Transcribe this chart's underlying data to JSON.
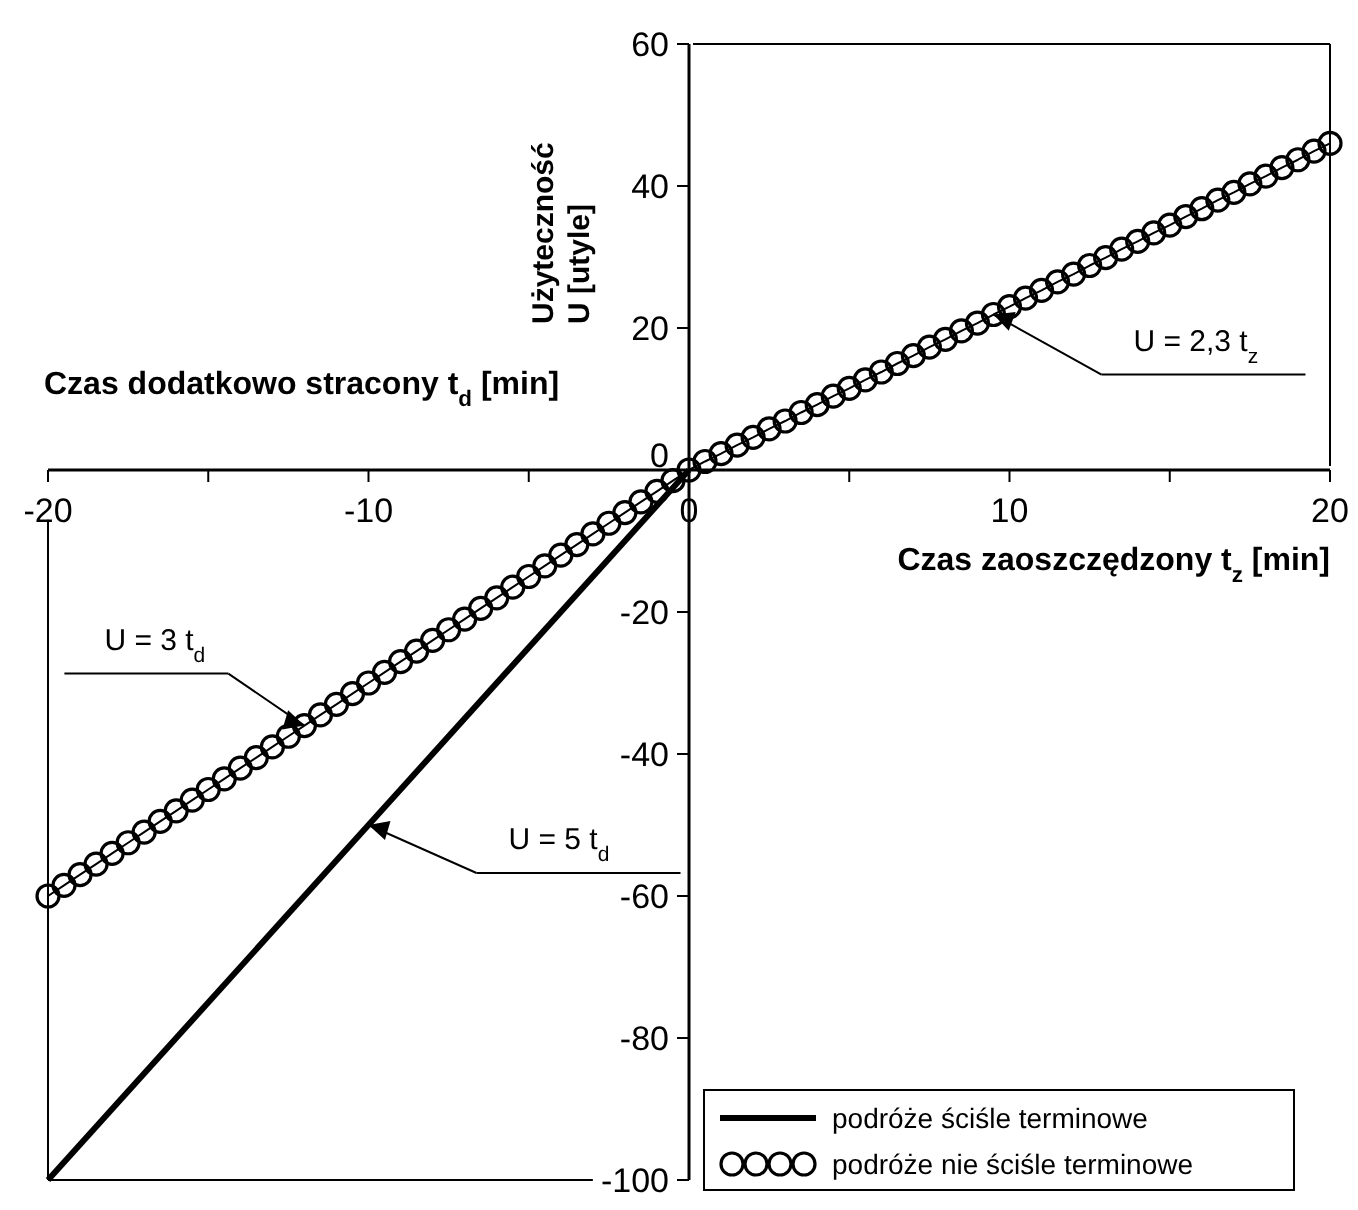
{
  "chart_data": {
    "type": "line",
    "xlabel": "Czas zaoszczędzony t$_{z}$ [min]",
    "ylabel": "Użyteczność U [utyle]",
    "annotations": [
      "Czas dodatkowo stracony t$_{d}$ [min]",
      {
        "text": "U = 2,3 t$_{z}$",
        "x": 9.5,
        "y": 21.9
      },
      {
        "text": "U = 3 t$_{d}$",
        "x": -12,
        "y": -36
      },
      {
        "text": "U = 5 t$_{d}$",
        "x": -10,
        "y": -50
      }
    ],
    "xlim": [
      -20,
      20
    ],
    "ylim": [
      -100,
      60
    ],
    "xticks": [
      -20,
      {
        "value": -15,
        "label": null
      },
      -10,
      {
        "value": -5,
        "label": null
      },
      0,
      {
        "value": 5,
        "label": null
      },
      10,
      {
        "value": 15,
        "label": null
      },
      20
    ],
    "yticks": [
      -100,
      -80,
      -60,
      -40,
      -20,
      0,
      20,
      40,
      60
    ],
    "grid": false,
    "legend": "bottom right",
    "series": [
      {
        "name": "podróże ściśle terminowe",
        "color": "#000000",
        "line_style": "solid",
        "x": [
          -20,
          0
        ],
        "values": [
          -100,
          0
        ]
      },
      {
        "name": "podróże nie ściśle terminowe",
        "color": "#000000",
        "marker": "circle",
        "x": [
          -20,
          -19.5,
          -19,
          -18.5,
          -18,
          -17.5,
          -17,
          -16.5,
          -16,
          -15.5,
          -15,
          -14.5,
          -14,
          -13.5,
          -13,
          -12.5,
          -12,
          -11.5,
          -11,
          -10.5,
          -10,
          -9.5,
          -9,
          -8.5,
          -8,
          -7.5,
          -7,
          -6.5,
          -6,
          -5.5,
          -5,
          -4.5,
          -4,
          -3.5,
          -3,
          -2.5,
          -2,
          -1.5,
          -1,
          -0.5,
          0,
          0.5,
          1,
          1.5,
          2,
          2.5,
          3,
          3.5,
          4,
          4.5,
          5,
          5.5,
          6,
          6.5,
          7,
          7.5,
          8,
          8.5,
          9,
          9.5,
          10,
          10.5,
          11,
          11.5,
          12,
          12.5,
          13,
          13.5,
          14,
          14.5,
          15,
          15.5,
          16,
          16.5,
          17,
          17.5,
          18,
          18.5,
          19,
          19.5,
          20
        ],
        "values": [
          -60,
          -58.5,
          -57,
          -55.5,
          -54,
          -52.5,
          -51,
          -49.5,
          -48,
          -46.5,
          -45,
          -43.5,
          -42,
          -40.5,
          -39,
          -37.5,
          -36,
          -34.5,
          -33,
          -31.5,
          -30,
          -28.5,
          -27,
          -25.5,
          -24,
          -22.5,
          -21,
          -19.5,
          -18,
          -16.5,
          -15,
          -13.5,
          -12,
          -10.5,
          -9,
          -7.5,
          -6,
          -4.5,
          -3,
          -1.5,
          0,
          1.2,
          2.3,
          3.5,
          4.6,
          5.8,
          6.9,
          8.1,
          9.2,
          10.4,
          11.5,
          12.7,
          13.8,
          15,
          16.1,
          17.3,
          18.4,
          19.6,
          20.7,
          21.9,
          23,
          24.2,
          25.3,
          26.5,
          27.6,
          28.8,
          29.9,
          31.1,
          32.2,
          33.4,
          34.5,
          35.7,
          36.8,
          38,
          39.1,
          40.3,
          41.4,
          42.6,
          43.7,
          44.9,
          46
        ]
      }
    ]
  }
}
